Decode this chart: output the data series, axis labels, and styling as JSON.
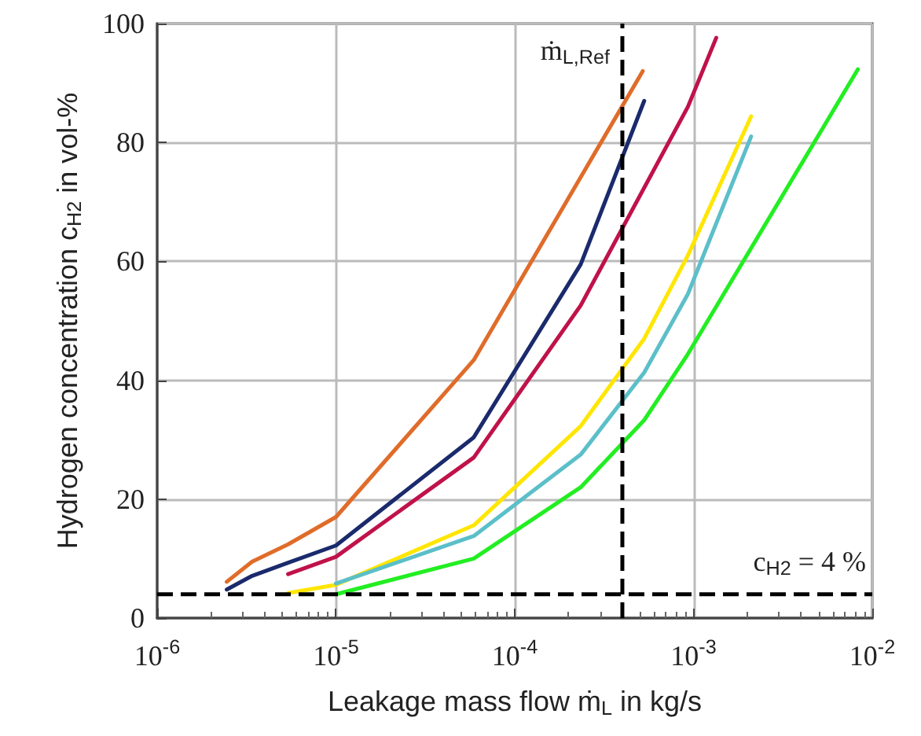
{
  "chart_data": {
    "type": "line",
    "xlabel": "Leakage mass flow ṁ$_{L}$ in kg/s",
    "ylabel": "Hydrogen concentration c$_{H2}$ in vol-%",
    "log": "x",
    "grid": true,
    "marker": "none",
    "line_style": "solid",
    "xlim": [
      1e-06,
      0.01
    ],
    "xticks": [
      {
        "value": 1e-06,
        "label": "10$^{-6}$"
      },
      {
        "value": 1e-05,
        "label": "10$^{-5}$"
      },
      {
        "value": 0.0001,
        "label": "10$^{-4}$"
      },
      {
        "value": 0.001,
        "label": "10$^{-3}$"
      },
      {
        "value": 0.01,
        "label": "10$^{-2}$"
      }
    ],
    "ylim": [
      0,
      100
    ],
    "yticks": [
      0,
      20,
      40,
      60,
      80,
      100
    ],
    "series": [
      {
        "color": "#e06c2a",
        "x": [
          2.45e-06,
          3.4e-06,
          5.4e-06,
          1e-05,
          5.9e-05,
          0.00052
        ],
        "values": [
          6.1,
          9.5,
          12.4,
          17,
          43.4,
          92
        ]
      },
      {
        "color": "#1a2a6c",
        "x": [
          2.45e-06,
          3.4e-06,
          5.4e-06,
          1e-05,
          5.9e-05,
          0.000234,
          0.00053
        ],
        "values": [
          4.8,
          7.1,
          9.3,
          12.2,
          30.4,
          59.5,
          87
        ]
      },
      {
        "color": "#c0124a",
        "x": [
          5.4e-06,
          1e-05,
          5.9e-05,
          0.000234,
          0.00093,
          0.00134
        ],
        "values": [
          7.4,
          10.3,
          27,
          52.6,
          86,
          97.6
        ]
      },
      {
        "color": "#ffe600",
        "x": [
          5.4e-06,
          1e-05,
          5.9e-05,
          0.000234,
          0.00053,
          0.00093,
          0.0021
        ],
        "values": [
          4.2,
          5.6,
          15.6,
          32.3,
          47,
          61,
          84.4
        ]
      },
      {
        "color": "#5bbfc9",
        "x": [
          1e-05,
          5.9e-05,
          0.000234,
          0.00053,
          0.00093,
          0.0021
        ],
        "values": [
          5.8,
          13.8,
          27.5,
          41.3,
          54.5,
          81
        ]
      },
      {
        "color": "#22ee22",
        "x": [
          1e-05,
          5.9e-05,
          0.000234,
          0.00053,
          0.00093,
          0.0083
        ],
        "values": [
          4,
          10,
          22,
          33.3,
          44.4,
          92.3
        ]
      }
    ],
    "ref_lines": [
      {
        "axis": "x",
        "value": 0.0004,
        "label": "ṁ$_{L,Ref}$",
        "color": "#000000",
        "line_style": "dashed"
      },
      {
        "axis": "y",
        "value": 4,
        "label": "c$_{H2}$ = 4 %",
        "color": "#000000",
        "line_style": "dashed"
      }
    ]
  }
}
